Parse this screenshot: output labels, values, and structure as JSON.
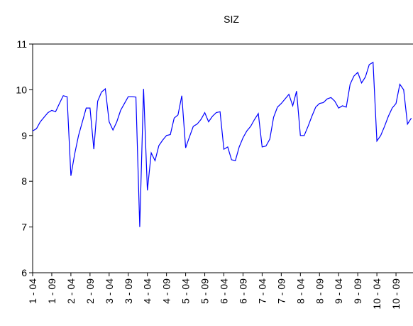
{
  "chart_data": {
    "type": "line",
    "title": "SIZ",
    "categories": [
      "1 - 04",
      null,
      null,
      null,
      null,
      "1 - 09",
      null,
      null,
      null,
      null,
      "2 - 04",
      null,
      null,
      null,
      null,
      "2 - 09",
      null,
      null,
      null,
      null,
      "3 - 04",
      null,
      null,
      null,
      null,
      "3 - 09",
      null,
      null,
      null,
      null,
      "4 - 04",
      null,
      null,
      null,
      null,
      "4 - 09",
      null,
      null,
      null,
      null,
      "5 - 04",
      null,
      null,
      null,
      null,
      "5 - 09",
      null,
      null,
      null,
      null,
      "6 - 04",
      null,
      null,
      null,
      null,
      "6 - 09",
      null,
      null,
      null,
      null,
      "7 - 04",
      null,
      null,
      null,
      null,
      "7 - 09",
      null,
      null,
      null,
      null,
      "8 - 04",
      null,
      null,
      null,
      null,
      "8 - 09",
      null,
      null,
      null,
      null,
      "9 - 04",
      null,
      null,
      null,
      null,
      "9 - 09",
      null,
      null,
      null,
      null,
      "10 - 04",
      null,
      null,
      null,
      null,
      "10 - 09",
      null,
      null,
      null,
      null
    ],
    "series": [
      {
        "name": "SIZ",
        "color": "#0000ff",
        "values": [
          9.1,
          9.15,
          9.3,
          9.4,
          9.5,
          9.55,
          9.52,
          9.7,
          9.87,
          9.85,
          8.12,
          8.6,
          9.0,
          9.3,
          9.6,
          9.6,
          8.7,
          9.75,
          9.95,
          10.02,
          9.3,
          9.12,
          9.3,
          9.55,
          9.7,
          9.85,
          9.85,
          9.84,
          7.0,
          10.02,
          7.8,
          8.62,
          8.45,
          8.78,
          8.9,
          9.0,
          9.02,
          9.38,
          9.45,
          9.87,
          8.73,
          8.97,
          9.2,
          9.25,
          9.35,
          9.5,
          9.3,
          9.42,
          9.5,
          9.52,
          8.7,
          8.75,
          8.47,
          8.45,
          8.75,
          8.95,
          9.1,
          9.2,
          9.35,
          9.48,
          8.75,
          8.77,
          8.92,
          9.4,
          9.62,
          9.7,
          9.8,
          9.9,
          9.65,
          9.97,
          9.0,
          9.0,
          9.2,
          9.42,
          9.62,
          9.7,
          9.72,
          9.8,
          9.83,
          9.75,
          9.6,
          9.65,
          9.62,
          10.12,
          10.3,
          10.38,
          10.15,
          10.28,
          10.55,
          10.6,
          8.88,
          9.0,
          9.2,
          9.42,
          9.6,
          9.7,
          10.12,
          10.0,
          9.25,
          9.38
        ]
      }
    ],
    "ylim": [
      6,
      11
    ],
    "yticks": [
      6,
      7,
      8,
      9,
      10,
      11
    ]
  }
}
